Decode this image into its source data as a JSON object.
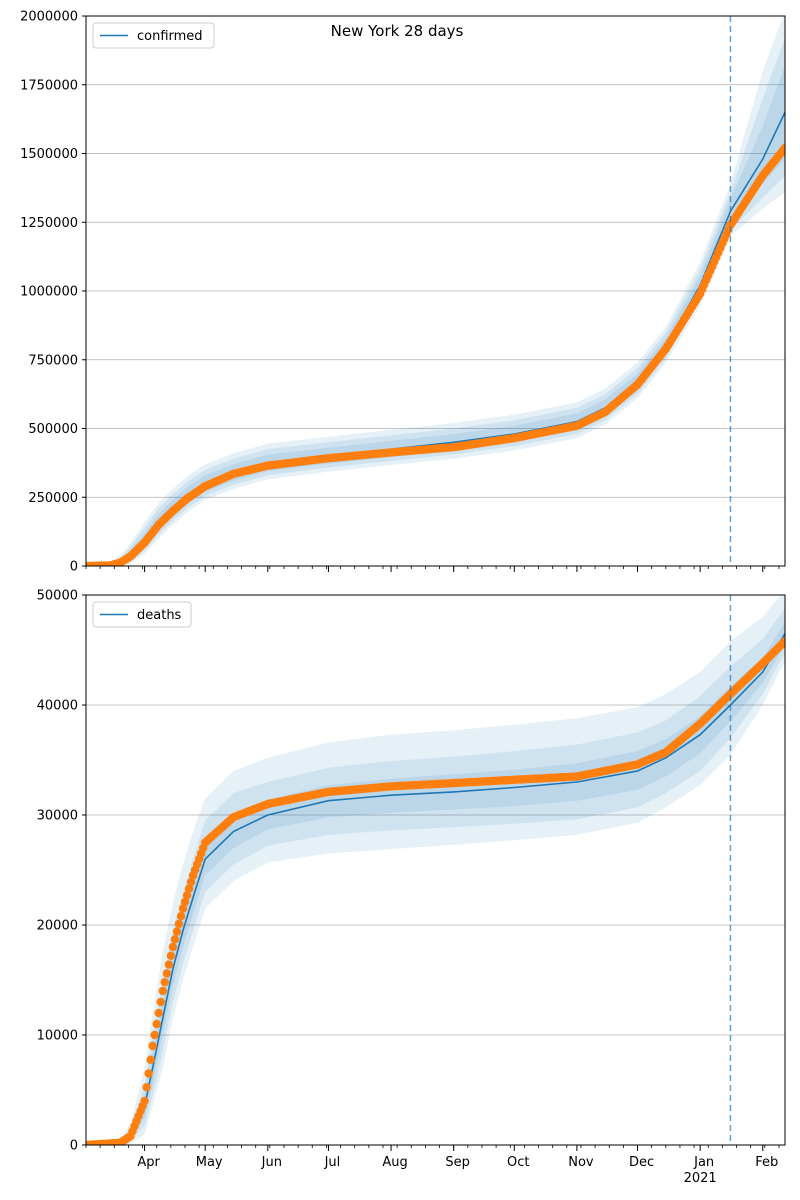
{
  "figure_title": "New York 28 days",
  "x_axis": {
    "month_labels": [
      "Apr",
      "May",
      "Jun",
      "Jul",
      "Aug",
      "Sep",
      "Oct",
      "Nov",
      "Dec",
      "Jan",
      "Feb"
    ],
    "month_dates": [
      "2020-04-01",
      "2020-05-01",
      "2020-06-01",
      "2020-07-01",
      "2020-08-01",
      "2020-09-01",
      "2020-10-01",
      "2020-11-01",
      "2020-12-01",
      "2021-01-01",
      "2021-02-01"
    ],
    "year_label": "2021",
    "range": [
      "2020-03-03",
      "2021-02-12"
    ],
    "forecast_start": "2021-01-16"
  },
  "colors": {
    "model_line": "#1f77b4",
    "observed": "#ff7f0e",
    "band": "#1f77b4",
    "grid": "#b0b0b0",
    "forecast_marker": "#1f77b4"
  },
  "chart_data": [
    {
      "type": "line",
      "legend": "confirmed",
      "legend_position": "top-left",
      "grid_y": true,
      "ylim": [
        0,
        2000000
      ],
      "yticks": [
        0,
        250000,
        500000,
        750000,
        1000000,
        1250000,
        1500000,
        1750000,
        2000000
      ],
      "ytick_labels": [
        "0",
        "250000",
        "500000",
        "750000",
        "1000000",
        "1250000",
        "1500000",
        "1750000",
        "2000000"
      ],
      "model": {
        "dates": [
          "2020-03-03",
          "2020-03-15",
          "2020-03-20",
          "2020-03-25",
          "2020-04-01",
          "2020-04-08",
          "2020-04-15",
          "2020-04-22",
          "2020-05-01",
          "2020-05-15",
          "2020-06-01",
          "2020-07-01",
          "2020-08-01",
          "2020-09-01",
          "2020-10-01",
          "2020-11-01",
          "2020-11-15",
          "2020-12-01",
          "2020-12-15",
          "2021-01-01",
          "2021-01-16",
          "2021-02-01",
          "2021-02-12"
        ],
        "values": [
          0,
          2000,
          12000,
          40000,
          95000,
          160000,
          210000,
          255000,
          300000,
          340000,
          375000,
          400000,
          425000,
          450000,
          480000,
          525000,
          575000,
          670000,
          800000,
          1020000,
          1290000,
          1480000,
          1650000
        ],
        "bands": [
          {
            "lower": [
              0,
              0,
              4000,
              25000,
              70000,
              130000,
              180000,
              225000,
              270000,
              310000,
              345000,
              372000,
              396000,
              420000,
              450000,
              495000,
              545000,
              640000,
              770000,
              985000,
              1245000,
              1390000,
              1480000
            ],
            "upper": [
              0,
              5000,
              22000,
              58000,
              120000,
              190000,
              240000,
              285000,
              330000,
              370000,
              405000,
              430000,
              455000,
              480000,
              510000,
              555000,
              605000,
              700000,
              830000,
              1055000,
              1335000,
              1600000,
              1820000
            ]
          },
          {
            "lower": [
              0,
              0,
              0,
              15000,
              55000,
              115000,
              165000,
              210000,
              255000,
              295000,
              330000,
              358000,
              382000,
              406000,
              436000,
              480000,
              530000,
              625000,
              755000,
              965000,
              1220000,
              1340000,
              1420000
            ],
            "upper": [
              0,
              8000,
              30000,
              70000,
              140000,
              210000,
              260000,
              305000,
              350000,
              390000,
              425000,
              450000,
              475000,
              500000,
              530000,
              575000,
              625000,
              720000,
              850000,
              1080000,
              1360000,
              1700000,
              1920000
            ]
          },
          {
            "lower": [
              0,
              0,
              0,
              8000,
              45000,
              100000,
              150000,
              195000,
              240000,
              280000,
              315000,
              343000,
              367000,
              390000,
              420000,
              465000,
              515000,
              610000,
              740000,
              945000,
              1200000,
              1300000,
              1360000
            ],
            "upper": [
              0,
              12000,
              38000,
              82000,
              160000,
              230000,
              280000,
              325000,
              370000,
              410000,
              445000,
              470000,
              495000,
              520000,
              550000,
              595000,
              645000,
              740000,
              870000,
              1105000,
              1390000,
              1800000,
              2020000
            ]
          }
        ]
      },
      "observed": {
        "dates": [
          "2020-03-03",
          "2020-03-15",
          "2020-03-20",
          "2020-03-25",
          "2020-04-01",
          "2020-04-08",
          "2020-04-15",
          "2020-04-22",
          "2020-05-01",
          "2020-05-15",
          "2020-06-01",
          "2020-07-01",
          "2020-08-01",
          "2020-09-01",
          "2020-10-01",
          "2020-11-01",
          "2020-11-15",
          "2020-12-01",
          "2020-12-15",
          "2021-01-01",
          "2021-01-16",
          "2021-02-01",
          "2021-02-12"
        ],
        "values": [
          0,
          2000,
          12000,
          35000,
          85000,
          150000,
          200000,
          245000,
          290000,
          335000,
          365000,
          392000,
          413000,
          432000,
          465000,
          510000,
          560000,
          660000,
          790000,
          990000,
          1240000,
          1420000,
          1520000
        ]
      }
    },
    {
      "type": "line",
      "legend": "deaths",
      "legend_position": "top-left",
      "grid_y": true,
      "ylim": [
        0,
        50000
      ],
      "yticks": [
        0,
        10000,
        20000,
        30000,
        40000,
        50000
      ],
      "ytick_labels": [
        "0",
        "10000",
        "20000",
        "30000",
        "40000",
        "50000"
      ],
      "model": {
        "dates": [
          "2020-03-03",
          "2020-03-20",
          "2020-03-25",
          "2020-04-01",
          "2020-04-05",
          "2020-04-10",
          "2020-04-15",
          "2020-04-20",
          "2020-04-25",
          "2020-05-01",
          "2020-05-15",
          "2020-06-01",
          "2020-07-01",
          "2020-08-01",
          "2020-09-01",
          "2020-10-01",
          "2020-11-01",
          "2020-12-01",
          "2020-12-15",
          "2021-01-01",
          "2021-01-16",
          "2021-02-01",
          "2021-02-12"
        ],
        "values": [
          0,
          200,
          800,
          3500,
          7000,
          11500,
          16000,
          19500,
          22500,
          26000,
          28500,
          30000,
          31300,
          31800,
          32100,
          32500,
          33000,
          34000,
          35200,
          37300,
          40000,
          43000,
          46500
        ],
        "bands": [
          {
            "lower": [
              0,
              100,
              500,
              2500,
              5500,
              10000,
              14500,
              18000,
              21000,
              24500,
              27000,
              28700,
              29800,
              30200,
              30500,
              30800,
              31300,
              32300,
              33500,
              35600,
              38500,
              42000,
              45500
            ],
            "upper": [
              0,
              300,
              1100,
              4500,
              8500,
              13000,
              17500,
              21000,
              24000,
              27500,
              30000,
              31400,
              32700,
              33300,
              33700,
              34100,
              34700,
              35800,
              36900,
              39000,
              41700,
              44300,
              47500
            ]
          },
          {
            "lower": [
              0,
              0,
              300,
              1800,
              4500,
              8500,
              13000,
              16500,
              19500,
              23000,
              25500,
              27200,
              28200,
              28600,
              28900,
              29200,
              29600,
              30700,
              32000,
              34000,
              37000,
              41000,
              44800
            ],
            "upper": [
              0,
              400,
              1500,
              5500,
              10000,
              15000,
              19500,
              23000,
              26000,
              29500,
              32000,
              33000,
              34300,
              34900,
              35300,
              35800,
              36400,
              37500,
              38600,
              40800,
              43500,
              46000,
              48800
            ]
          },
          {
            "lower": [
              0,
              0,
              100,
              1000,
              3500,
              7000,
              11500,
              15000,
              18000,
              21500,
              24000,
              25700,
              26500,
              26900,
              27300,
              27700,
              28200,
              29300,
              30700,
              32700,
              35500,
              40000,
              44000
            ],
            "upper": [
              0,
              600,
              2000,
              7000,
              12000,
              17500,
              22000,
              25500,
              28500,
              31500,
              34000,
              35200,
              36600,
              37300,
              37700,
              38200,
              38800,
              39800,
              41000,
              43000,
              45800,
              48000,
              50500
            ]
          }
        ]
      },
      "observed": {
        "dates": [
          "2020-03-03",
          "2020-03-20",
          "2020-03-25",
          "2020-04-01",
          "2020-04-05",
          "2020-04-10",
          "2020-04-15",
          "2020-04-20",
          "2020-04-25",
          "2020-05-01",
          "2020-05-15",
          "2020-06-01",
          "2020-07-01",
          "2020-08-01",
          "2020-09-01",
          "2020-10-01",
          "2020-11-01",
          "2020-12-01",
          "2020-12-15",
          "2021-01-01",
          "2021-01-16",
          "2021-02-01",
          "2021-02-12"
        ],
        "values": [
          0,
          200,
          800,
          4000,
          9000,
          14000,
          18000,
          21500,
          24500,
          27500,
          29800,
          31000,
          32100,
          32600,
          32900,
          33200,
          33500,
          34600,
          35700,
          38300,
          41000,
          43800,
          45800
        ]
      }
    }
  ]
}
